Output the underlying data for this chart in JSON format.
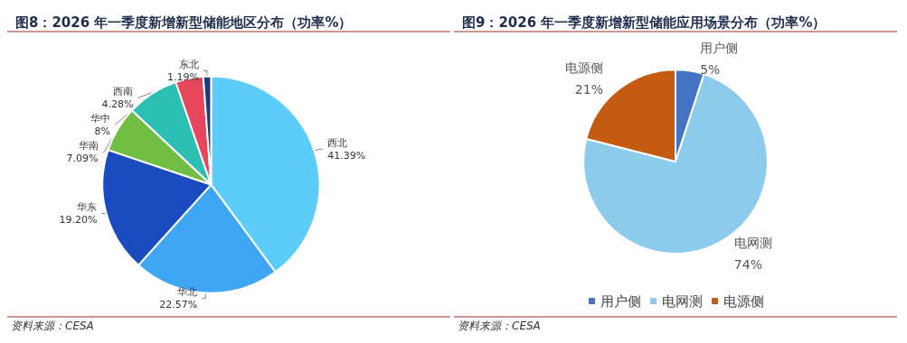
{
  "chart_data": [
    {
      "type": "pie",
      "title": "图8：2026 年一季度新增新型储能地区分布（功率%）",
      "categories": [
        "西北",
        "华北",
        "华东",
        "华南",
        "华中",
        "西南",
        "东北"
      ],
      "values": [
        41.39,
        22.57,
        19.2,
        7.09,
        8,
        4.28,
        1.19
      ],
      "value_labels": [
        "41.39%",
        "22.57%",
        "19.20%",
        "7.09%",
        "8%",
        "4.28%",
        "1.19%"
      ],
      "colors": [
        "#5ccdf9",
        "#3ea6f2",
        "#1a4cc0",
        "#72be44",
        "#2bbfb3",
        "#e6475c",
        "#1f3a78"
      ],
      "legend": false,
      "annotations": [
        "资料来源：CESA"
      ]
    },
    {
      "type": "pie",
      "title": "图9：2026 年一季度新增新型储能应用场景分布（功率%）",
      "categories": [
        "用户侧",
        "电网测",
        "电源侧"
      ],
      "values": [
        5,
        74,
        21
      ],
      "value_labels": [
        "5%",
        "74%",
        "21%"
      ],
      "colors": [
        "#4472c4",
        "#8ccbeb",
        "#c55a11"
      ],
      "legend": "bottom",
      "annotations": [
        "资料来源：CESA"
      ]
    }
  ]
}
